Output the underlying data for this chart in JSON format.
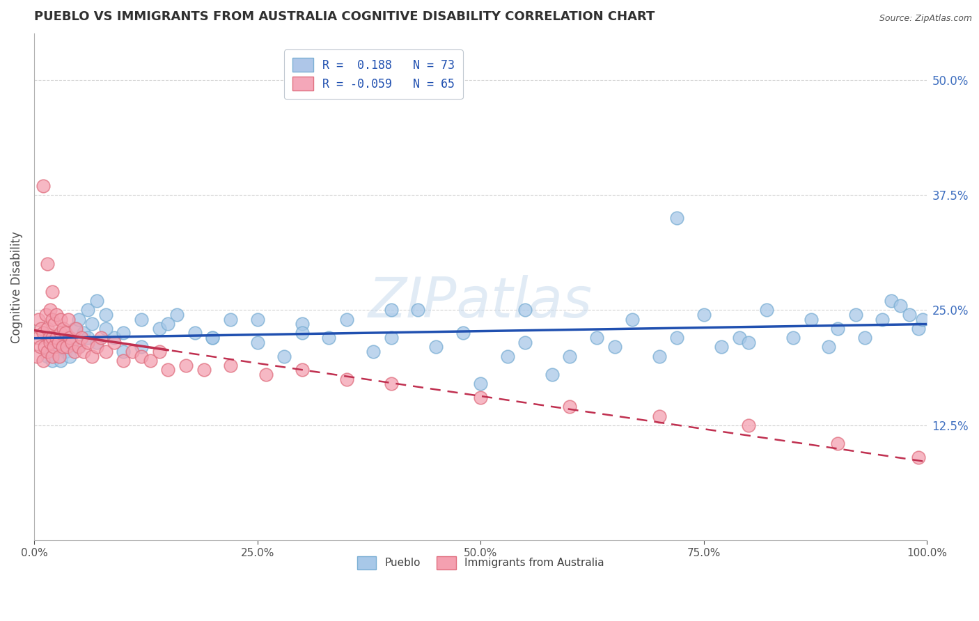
{
  "title": "PUEBLO VS IMMIGRANTS FROM AUSTRALIA COGNITIVE DISABILITY CORRELATION CHART",
  "source": "Source: ZipAtlas.com",
  "ylabel": "Cognitive Disability",
  "watermark": "ZIPatlas",
  "xlim": [
    0.0,
    100.0
  ],
  "ylim": [
    0.0,
    55.0
  ],
  "ytick_positions": [
    12.5,
    25.0,
    37.5,
    50.0
  ],
  "ytick_labels": [
    "12.5%",
    "25.0%",
    "37.5%",
    "50.0%"
  ],
  "xtick_positions": [
    0.0,
    25.0,
    50.0,
    75.0,
    100.0
  ],
  "xtick_labels": [
    "0.0%",
    "25.0%",
    "50.0%",
    "75.0%",
    "100.0%"
  ],
  "legend_r1": "R =  0.188   N = 73",
  "legend_r2": "R = -0.059   N = 65",
  "legend_color1": "#aec6e8",
  "legend_color2": "#f4a7b9",
  "pueblo_color": "#a8c8e8",
  "pueblo_edge": "#7bafd4",
  "australia_color": "#f4a0b0",
  "australia_edge": "#e07080",
  "trend_pueblo_color": "#2050b0",
  "trend_australia_color": "#c03050",
  "background_color": "#ffffff",
  "grid_color": "#d0d0d0",
  "title_color": "#303030",
  "pueblo_x": [
    1.5,
    2.0,
    2.5,
    3.0,
    3.5,
    4.0,
    4.5,
    5.0,
    5.5,
    6.0,
    6.5,
    7.0,
    8.0,
    9.0,
    10.0,
    12.0,
    14.0,
    16.0,
    18.0,
    20.0,
    22.0,
    25.0,
    28.0,
    30.0,
    33.0,
    35.0,
    38.0,
    40.0,
    43.0,
    45.0,
    48.0,
    50.0,
    53.0,
    55.0,
    58.0,
    60.0,
    63.0,
    65.0,
    67.0,
    70.0,
    72.0,
    75.0,
    77.0,
    79.0,
    80.0,
    82.0,
    85.0,
    87.0,
    89.0,
    90.0,
    92.0,
    93.0,
    95.0,
    96.0,
    97.0,
    98.0,
    99.0,
    99.5,
    3.0,
    4.0,
    5.0,
    6.0,
    7.0,
    8.0,
    10.0,
    12.0,
    15.0,
    20.0,
    25.0,
    30.0,
    40.0,
    55.0,
    72.0
  ],
  "pueblo_y": [
    20.0,
    19.5,
    21.0,
    22.0,
    20.5,
    21.5,
    23.0,
    24.0,
    22.5,
    25.0,
    23.5,
    26.0,
    24.5,
    22.0,
    20.5,
    21.0,
    23.0,
    24.5,
    22.5,
    22.0,
    24.0,
    21.5,
    20.0,
    23.5,
    22.0,
    24.0,
    20.5,
    22.0,
    25.0,
    21.0,
    22.5,
    17.0,
    20.0,
    21.5,
    18.0,
    20.0,
    22.0,
    21.0,
    24.0,
    20.0,
    22.0,
    24.5,
    21.0,
    22.0,
    21.5,
    25.0,
    22.0,
    24.0,
    21.0,
    23.0,
    24.5,
    22.0,
    24.0,
    26.0,
    25.5,
    24.5,
    23.0,
    24.0,
    19.5,
    20.0,
    21.0,
    22.0,
    21.5,
    23.0,
    22.5,
    24.0,
    23.5,
    22.0,
    24.0,
    22.5,
    25.0,
    25.0,
    35.0
  ],
  "australia_x": [
    0.3,
    0.5,
    0.5,
    0.7,
    0.8,
    1.0,
    1.0,
    1.2,
    1.3,
    1.5,
    1.5,
    1.7,
    1.8,
    1.8,
    2.0,
    2.0,
    2.0,
    2.2,
    2.3,
    2.5,
    2.5,
    2.7,
    2.8,
    3.0,
    3.0,
    3.2,
    3.3,
    3.5,
    3.7,
    3.8,
    4.0,
    4.2,
    4.5,
    4.7,
    5.0,
    5.3,
    5.5,
    6.0,
    6.5,
    7.0,
    7.5,
    8.0,
    9.0,
    10.0,
    11.0,
    12.0,
    13.0,
    14.0,
    15.0,
    17.0,
    19.0,
    22.0,
    26.0,
    30.0,
    35.0,
    40.0,
    50.0,
    60.0,
    70.0,
    80.0,
    90.0,
    99.0,
    1.0,
    1.5,
    2.0
  ],
  "australia_y": [
    20.0,
    22.0,
    24.0,
    21.0,
    23.0,
    19.5,
    22.5,
    21.0,
    24.5,
    20.5,
    23.0,
    22.0,
    21.5,
    25.0,
    20.0,
    22.0,
    24.0,
    21.0,
    23.5,
    22.0,
    24.5,
    21.5,
    20.0,
    22.5,
    24.0,
    21.0,
    23.0,
    22.5,
    21.0,
    24.0,
    22.0,
    21.5,
    20.5,
    23.0,
    21.0,
    22.0,
    20.5,
    21.5,
    20.0,
    21.0,
    22.0,
    20.5,
    21.5,
    19.5,
    20.5,
    20.0,
    19.5,
    20.5,
    18.5,
    19.0,
    18.5,
    19.0,
    18.0,
    18.5,
    17.5,
    17.0,
    15.5,
    14.5,
    13.5,
    12.5,
    10.5,
    9.0,
    38.5,
    30.0,
    27.0
  ]
}
